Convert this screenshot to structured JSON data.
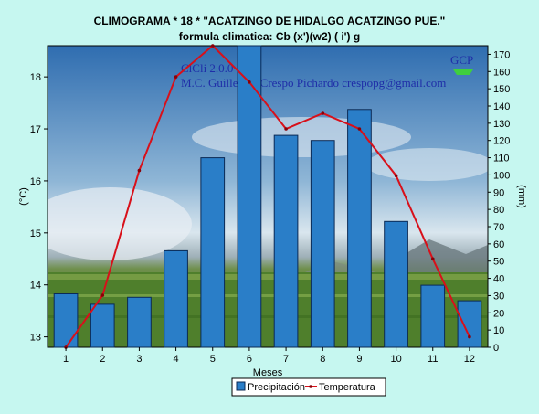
{
  "window": {
    "title_line1": "CLIMOGRAMA  *      18    * \"ACATZINGO DE HIDALGO  ACATZINGO  PUE.\"",
    "title_line2": "formula climatica: Cb  (x')(w2) ( i') g"
  },
  "watermark": {
    "line1": "ClCli 2.0.0",
    "line2": "M.C. Guillermo Crespo Pichardo  crespopg@gmail.com",
    "logo_text": "GCP"
  },
  "colors": {
    "background": "#c6f7f0",
    "bar_fill": "#2a7ec8",
    "bar_stroke": "#0a2a55",
    "line": "#d8101a",
    "sky_top": "#3a78b8",
    "grass": "#5a8a34"
  },
  "chart_data": {
    "type": "bar",
    "title": "CLIMOGRAMA  *      18    * \"ACATZINGO DE HIDALGO  ACATZINGO  PUE.\"",
    "subtitle": "formula climatica: Cb  (x')(w2) ( i') g",
    "xlabel": "Meses",
    "ylabel_left": "(°C)",
    "ylabel_right": "(mm)",
    "categories": [
      "1",
      "2",
      "3",
      "4",
      "5",
      "6",
      "7",
      "8",
      "9",
      "10",
      "11",
      "12"
    ],
    "ylim_left": [
      12.8,
      18.6
    ],
    "ylim_right": [
      0,
      175
    ],
    "yticks_left": [
      "13",
      "14",
      "15",
      "16",
      "17",
      "18"
    ],
    "yticks_right": [
      "0",
      "10",
      "20",
      "30",
      "40",
      "50",
      "60",
      "70",
      "80",
      "90",
      "100",
      "110",
      "120",
      "130",
      "140",
      "150",
      "160",
      "170"
    ],
    "grid": false,
    "legend_position": "bottom",
    "series": [
      {
        "name": "Precipitación",
        "type": "bar",
        "axis": "right",
        "values": [
          31,
          25,
          29,
          56,
          110,
          178,
          123,
          120,
          138,
          73,
          36,
          27
        ]
      },
      {
        "name": "Temperatura",
        "type": "line",
        "axis": "left",
        "values": [
          12.8,
          13.8,
          16.2,
          18.0,
          18.6,
          17.9,
          17.0,
          17.3,
          17.0,
          16.1,
          14.5,
          13.0
        ]
      }
    ]
  }
}
